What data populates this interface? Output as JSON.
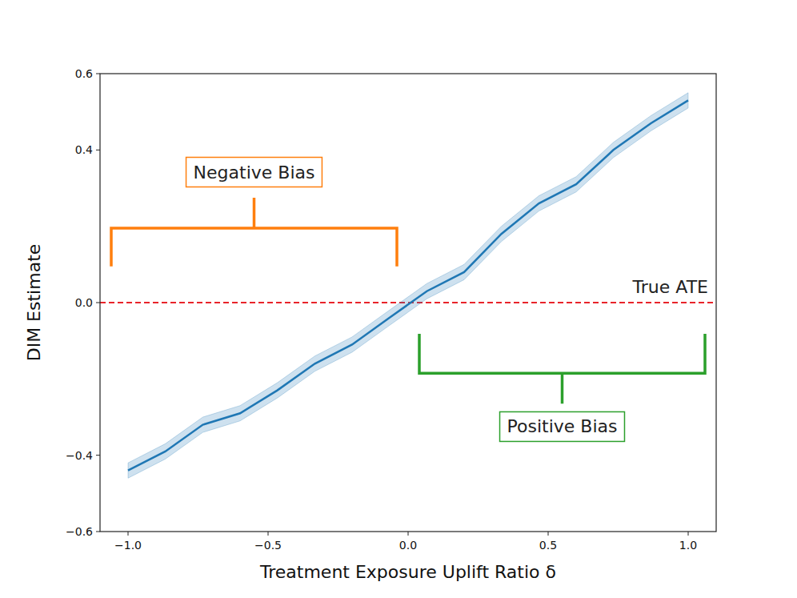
{
  "chart_data": {
    "type": "line",
    "x_label": "Treatment Exposure Uplift Ratio δ",
    "y_label": "DIM Estimate",
    "xlim": [
      -1.1,
      1.1
    ],
    "ylim": [
      -0.6,
      0.6
    ],
    "xticks": [
      {
        "value": -1.0,
        "label": "−1.0"
      },
      {
        "value": -0.5,
        "label": "−0.5"
      },
      {
        "value": 0.0,
        "label": "0.0"
      },
      {
        "value": 0.5,
        "label": "0.5"
      },
      {
        "value": 1.0,
        "label": "1.0"
      }
    ],
    "yticks": [
      {
        "value": -0.6,
        "label": "−0.6"
      },
      {
        "value": -0.4,
        "label": "−0.4"
      },
      {
        "value": 0.0,
        "label": "0.0"
      },
      {
        "value": 0.4,
        "label": "0.4"
      },
      {
        "value": 0.6,
        "label": "0.6"
      }
    ],
    "grid": false,
    "series": [
      {
        "color": "#1f77b4",
        "x": [
          -1.0,
          -0.867,
          -0.733,
          -0.6,
          -0.467,
          -0.333,
          -0.2,
          -0.067,
          0.067,
          0.2,
          0.333,
          0.467,
          0.6,
          0.733,
          0.867,
          1.0
        ],
        "values": [
          -0.44,
          -0.39,
          -0.32,
          -0.29,
          -0.23,
          -0.16,
          -0.11,
          -0.04,
          0.03,
          0.08,
          0.18,
          0.26,
          0.31,
          0.4,
          0.47,
          0.53
        ],
        "lower": [
          -0.46,
          -0.41,
          -0.34,
          -0.31,
          -0.25,
          -0.18,
          -0.13,
          -0.06,
          0.01,
          0.06,
          0.16,
          0.24,
          0.29,
          0.38,
          0.45,
          0.51
        ],
        "upper": [
          -0.42,
          -0.37,
          -0.3,
          -0.27,
          -0.21,
          -0.14,
          -0.09,
          -0.02,
          0.05,
          0.1,
          0.2,
          0.28,
          0.33,
          0.42,
          0.49,
          0.55
        ]
      }
    ],
    "reference_line": {
      "y": 0.0,
      "label": "True ATE",
      "color": "#e8242a",
      "line_style": "dashed"
    },
    "annotations": [
      {
        "text": "Negative Bias",
        "color": "#ff7f0e",
        "x": [
          -1.06,
          -0.04
        ],
        "y": 0.195,
        "tip": 0.095,
        "stem": 0.275,
        "label_x": -0.55,
        "label_y": 0.343
      },
      {
        "text": "Positive Bias",
        "color": "#2ca02c",
        "x": [
          0.04,
          1.06
        ],
        "y": -0.185,
        "tip": -0.082,
        "stem": -0.265,
        "label_x": 0.55,
        "label_y": -0.324
      }
    ]
  }
}
